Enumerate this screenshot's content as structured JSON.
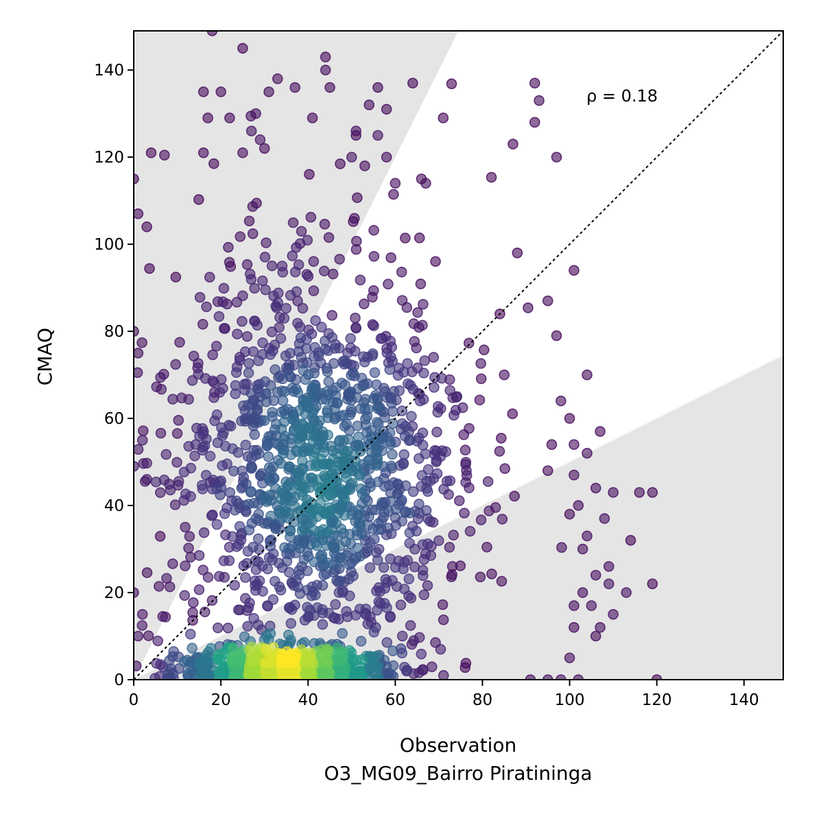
{
  "chart_data": {
    "type": "scatter",
    "xlabel": "Observation",
    "xlabel_sub": "O3_MG09_Bairro Piratininga",
    "ylabel": "CMAQ",
    "annotation": "ρ = 0.18",
    "xlim": [
      0,
      149
    ],
    "ylim": [
      0,
      149
    ],
    "x_ticks": [
      0,
      20,
      40,
      60,
      80,
      100,
      120,
      140
    ],
    "y_ticks": [
      0,
      20,
      40,
      60,
      80,
      100,
      120,
      140
    ],
    "reference_line": {
      "style": "dotted",
      "from": [
        0,
        0
      ],
      "to": [
        149,
        149
      ]
    },
    "shaded_regions": {
      "color": "#e5e5e5",
      "description": "areas outside factor-of-two band",
      "upper_boundary_slope": 2.0,
      "lower_boundary_slope": 0.5
    },
    "colormap": "viridis",
    "density_center": [
      35,
      2
    ],
    "outlier_points": [
      [
        18,
        149
      ],
      [
        25,
        145
      ],
      [
        44,
        143
      ],
      [
        44,
        140
      ],
      [
        33,
        138
      ],
      [
        37,
        136
      ],
      [
        45,
        136
      ],
      [
        16,
        135
      ],
      [
        20,
        135
      ],
      [
        31,
        135
      ],
      [
        56,
        136
      ],
      [
        64,
        137
      ],
      [
        54,
        132
      ],
      [
        58,
        131
      ],
      [
        28,
        130
      ],
      [
        17,
        129
      ],
      [
        22,
        129
      ],
      [
        41,
        129
      ],
      [
        71,
        129
      ],
      [
        51,
        126
      ],
      [
        51,
        125
      ],
      [
        56,
        125
      ],
      [
        27,
        126
      ],
      [
        29,
        124
      ],
      [
        30,
        122
      ],
      [
        25,
        121
      ],
      [
        16,
        121
      ],
      [
        4,
        121
      ],
      [
        50,
        120
      ],
      [
        53,
        118
      ],
      [
        58,
        120
      ],
      [
        60,
        114
      ],
      [
        66,
        115
      ],
      [
        67,
        114
      ],
      [
        92,
        137
      ],
      [
        93,
        133
      ],
      [
        92,
        128
      ],
      [
        87,
        123
      ],
      [
        97,
        120
      ],
      [
        88,
        98
      ],
      [
        101,
        94
      ],
      [
        95,
        87
      ],
      [
        84,
        84
      ],
      [
        97,
        79
      ],
      [
        85,
        70
      ],
      [
        104,
        70
      ],
      [
        98,
        64
      ],
      [
        100,
        60
      ],
      [
        107,
        57
      ],
      [
        101,
        54
      ],
      [
        104,
        52
      ],
      [
        101,
        47
      ],
      [
        95,
        48
      ],
      [
        106,
        44
      ],
      [
        110,
        43
      ],
      [
        116,
        43
      ],
      [
        119,
        43
      ],
      [
        100,
        38
      ],
      [
        102,
        40
      ],
      [
        108,
        37
      ],
      [
        114,
        32
      ],
      [
        104,
        33
      ],
      [
        103,
        30
      ],
      [
        109,
        26
      ],
      [
        106,
        24
      ],
      [
        103,
        20
      ],
      [
        109,
        22
      ],
      [
        113,
        20
      ],
      [
        119,
        22
      ],
      [
        101,
        17
      ],
      [
        105,
        17
      ],
      [
        101,
        12
      ],
      [
        106,
        10
      ],
      [
        107,
        12
      ],
      [
        110,
        15
      ],
      [
        100,
        5
      ],
      [
        120,
        0
      ],
      [
        95,
        0
      ],
      [
        98,
        0
      ],
      [
        102,
        0
      ],
      [
        91,
        0
      ],
      [
        0,
        115
      ],
      [
        1,
        107
      ],
      [
        3,
        104
      ],
      [
        0,
        80
      ],
      [
        1,
        75
      ],
      [
        2,
        55
      ],
      [
        0,
        49
      ],
      [
        3,
        46
      ],
      [
        0,
        20
      ],
      [
        2,
        15
      ],
      [
        1,
        10
      ]
    ]
  },
  "colors": {
    "marker_dark": "#440f5a",
    "shade": "#e5e5e5",
    "viridis": [
      "#440154",
      "#46327e",
      "#365c8d",
      "#277f8e",
      "#1fa187",
      "#4ac16d",
      "#a0da39",
      "#fde725"
    ]
  }
}
